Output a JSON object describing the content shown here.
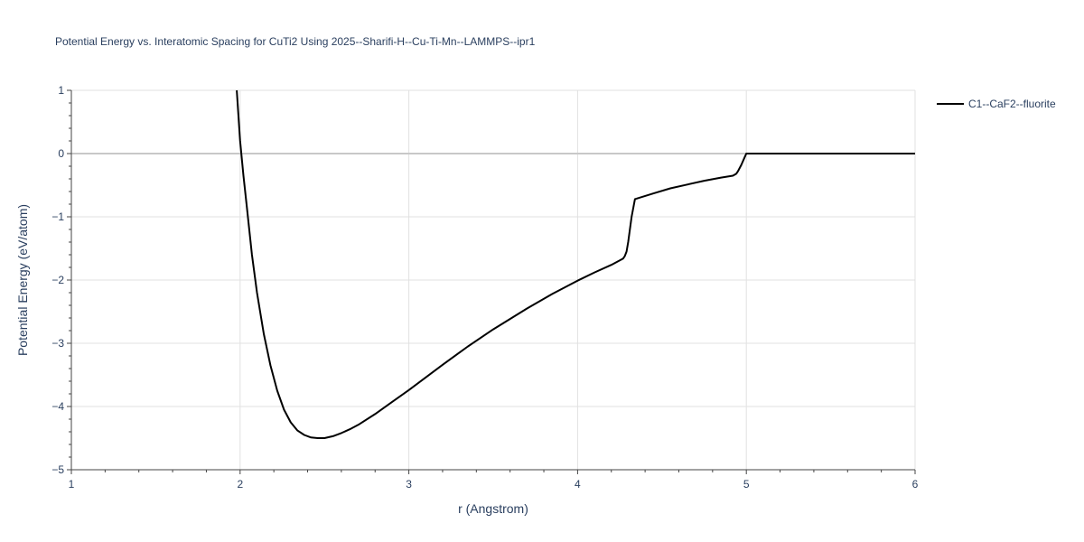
{
  "chart_data": {
    "type": "line",
    "title": "Potential Energy vs. Interatomic Spacing for CuTi2 Using 2025--Sharifi-H--Cu-Ti-Mn--LAMMPS--ipr1",
    "xlabel": "r (Angstrom)",
    "ylabel": "Potential Energy (eV/atom)",
    "xlim": [
      1,
      6
    ],
    "ylim": [
      -5,
      1
    ],
    "x_ticks": [
      1,
      2,
      3,
      4,
      5,
      6
    ],
    "x_tick_labels": [
      "1",
      "2",
      "3",
      "4",
      "5",
      "6"
    ],
    "y_ticks": [
      1,
      0,
      -1,
      -2,
      -3,
      -4,
      -5
    ],
    "y_tick_labels": [
      "1",
      "0",
      "−1",
      "−2",
      "−3",
      "−4",
      "−5"
    ],
    "grid": true,
    "legend_position": "top-right",
    "series": [
      {
        "name": "C1--CaF2--fluorite",
        "color": "#000000",
        "x": [
          1.98,
          2.0,
          2.02,
          2.04,
          2.07,
          2.1,
          2.14,
          2.18,
          2.22,
          2.26,
          2.3,
          2.34,
          2.38,
          2.42,
          2.46,
          2.5,
          2.55,
          2.6,
          2.65,
          2.7,
          2.8,
          2.9,
          3.0,
          3.1,
          3.2,
          3.35,
          3.5,
          3.7,
          3.85,
          4.0,
          4.1,
          4.2,
          4.25,
          4.27,
          4.28,
          4.29,
          4.3,
          4.31,
          4.32,
          4.34,
          4.45,
          4.55,
          4.65,
          4.75,
          4.85,
          4.92,
          4.94,
          4.95,
          4.97,
          4.99,
          5.0,
          5.2,
          5.5,
          6.0
        ],
        "y": [
          1.0,
          0.2,
          -0.35,
          -0.85,
          -1.6,
          -2.2,
          -2.85,
          -3.35,
          -3.75,
          -4.05,
          -4.25,
          -4.38,
          -4.45,
          -4.49,
          -4.5,
          -4.5,
          -4.47,
          -4.42,
          -4.36,
          -4.29,
          -4.12,
          -3.93,
          -3.74,
          -3.54,
          -3.34,
          -3.05,
          -2.78,
          -2.45,
          -2.22,
          -2.01,
          -1.88,
          -1.76,
          -1.69,
          -1.66,
          -1.62,
          -1.55,
          -1.4,
          -1.2,
          -1.0,
          -0.72,
          -0.63,
          -0.55,
          -0.49,
          -0.43,
          -0.38,
          -0.35,
          -0.32,
          -0.28,
          -0.18,
          -0.06,
          0.0,
          0.0,
          0.0,
          0.0
        ]
      }
    ]
  }
}
